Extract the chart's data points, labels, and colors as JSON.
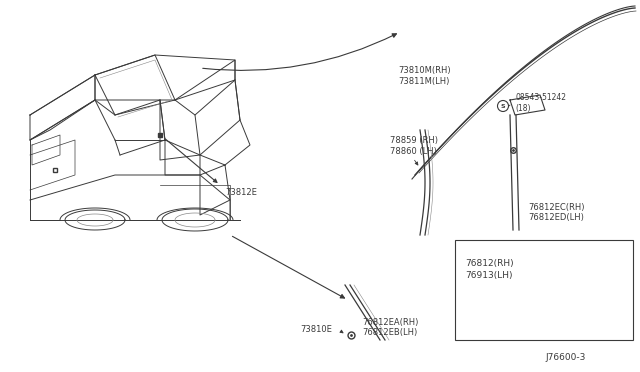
{
  "bg_color": "#ffffff",
  "line_color": "#3a3a3a",
  "text_color": "#3a3a3a",
  "light_line": "#888888",
  "labels": {
    "top_roof_rail": [
      "73810M(RH)",
      "73811M(LH)"
    ],
    "clip_73812E": "73812E",
    "rear_arch_upper": [
      "78859 (RH)",
      "78860 (LH)"
    ],
    "screw": "08543-51242",
    "screw2": "(18)",
    "side_lower_ec": [
      "76812EC(RH)",
      "76812ED(LH)"
    ],
    "side_lower": [
      "76812(RH)",
      "76913(LH)"
    ],
    "clip2": "73810E",
    "side_lower_ea": [
      "76812EA(RH)",
      "76812EB(LH)"
    ]
  },
  "diagram_id": "J76600-3"
}
